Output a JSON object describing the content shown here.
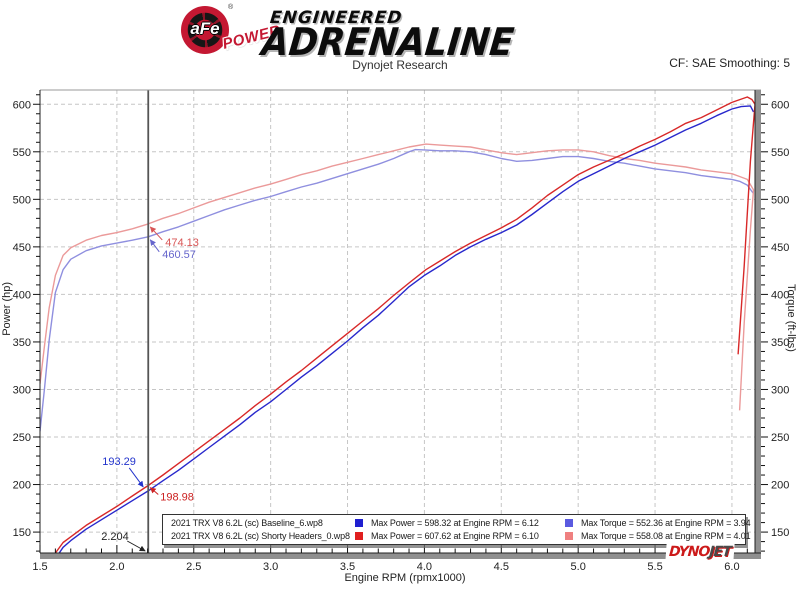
{
  "header": {
    "brand_circle": "aFe",
    "brand_sub": "POWER",
    "registered": "®",
    "line1": "ENGINEERED",
    "line2": "ADRENALINE",
    "subtitle": "Dynojet Research",
    "smoothing": "CF: SAE Smoothing: 5"
  },
  "chart_data": {
    "type": "line",
    "title": "Dynojet Research",
    "xlabel": "Engine RPM (rpmx1000)",
    "ylabel_left": "Power (hp)",
    "ylabel_right": "Torque (ft-lbs)",
    "xlim": [
      1.5,
      6.15
    ],
    "ylim": [
      128,
      615
    ],
    "xticks": [
      1.5,
      2.0,
      2.5,
      3.0,
      3.5,
      4.0,
      4.5,
      5.0,
      5.5,
      6.0
    ],
    "yticks": [
      150,
      200,
      250,
      300,
      350,
      400,
      450,
      500,
      550,
      600
    ],
    "grid": true,
    "legend_position": "bottom",
    "series": [
      {
        "name": "baseline-torque",
        "unit": "ft-lbs",
        "color": "#8f8fdf",
        "points": [
          [
            1.5,
            256
          ],
          [
            1.53,
            302
          ],
          [
            1.56,
            352
          ],
          [
            1.6,
            402
          ],
          [
            1.65,
            426
          ],
          [
            1.7,
            437
          ],
          [
            1.8,
            446
          ],
          [
            1.9,
            451
          ],
          [
            2.0,
            454
          ],
          [
            2.1,
            457
          ],
          [
            2.204,
            460.57
          ],
          [
            2.3,
            466
          ],
          [
            2.4,
            471
          ],
          [
            2.5,
            477
          ],
          [
            2.6,
            483
          ],
          [
            2.7,
            489
          ],
          [
            2.8,
            494
          ],
          [
            2.9,
            499
          ],
          [
            3.0,
            503
          ],
          [
            3.1,
            508
          ],
          [
            3.2,
            513
          ],
          [
            3.3,
            517
          ],
          [
            3.4,
            522
          ],
          [
            3.5,
            527
          ],
          [
            3.6,
            532
          ],
          [
            3.7,
            537
          ],
          [
            3.8,
            543
          ],
          [
            3.9,
            550
          ],
          [
            3.94,
            552.36
          ],
          [
            4.0,
            552
          ],
          [
            4.1,
            551
          ],
          [
            4.2,
            551
          ],
          [
            4.3,
            550
          ],
          [
            4.4,
            547
          ],
          [
            4.5,
            543
          ],
          [
            4.6,
            540
          ],
          [
            4.7,
            541
          ],
          [
            4.8,
            543
          ],
          [
            4.9,
            545
          ],
          [
            5.0,
            545
          ],
          [
            5.1,
            543
          ],
          [
            5.2,
            540
          ],
          [
            5.3,
            538
          ],
          [
            5.4,
            535
          ],
          [
            5.5,
            532
          ],
          [
            5.6,
            530
          ],
          [
            5.7,
            528
          ],
          [
            5.8,
            525
          ],
          [
            5.9,
            523
          ],
          [
            6.0,
            521
          ],
          [
            6.05,
            519
          ],
          [
            6.1,
            515
          ],
          [
            6.14,
            506
          ]
        ]
      },
      {
        "name": "shorty-torque",
        "unit": "ft-lbs",
        "color": "#eb9a9a",
        "points": [
          [
            1.5,
            306
          ],
          [
            1.53,
            347
          ],
          [
            1.56,
            386
          ],
          [
            1.6,
            420
          ],
          [
            1.65,
            441
          ],
          [
            1.7,
            449
          ],
          [
            1.8,
            457
          ],
          [
            1.9,
            462
          ],
          [
            2.0,
            465
          ],
          [
            2.1,
            469
          ],
          [
            2.204,
            474.13
          ],
          [
            2.3,
            480
          ],
          [
            2.4,
            485
          ],
          [
            2.5,
            491
          ],
          [
            2.6,
            497
          ],
          [
            2.7,
            502
          ],
          [
            2.8,
            507
          ],
          [
            2.9,
            512
          ],
          [
            3.0,
            516
          ],
          [
            3.1,
            521
          ],
          [
            3.2,
            526
          ],
          [
            3.3,
            530
          ],
          [
            3.4,
            535
          ],
          [
            3.5,
            539
          ],
          [
            3.6,
            543
          ],
          [
            3.7,
            547
          ],
          [
            3.8,
            551
          ],
          [
            3.9,
            555
          ],
          [
            4.01,
            558.08
          ],
          [
            4.1,
            557
          ],
          [
            4.2,
            556
          ],
          [
            4.3,
            555
          ],
          [
            4.4,
            552
          ],
          [
            4.5,
            549
          ],
          [
            4.6,
            547
          ],
          [
            4.7,
            549
          ],
          [
            4.8,
            551
          ],
          [
            4.9,
            552
          ],
          [
            5.0,
            552
          ],
          [
            5.1,
            550
          ],
          [
            5.2,
            546
          ],
          [
            5.3,
            543
          ],
          [
            5.4,
            541
          ],
          [
            5.5,
            538
          ],
          [
            5.6,
            536
          ],
          [
            5.7,
            534
          ],
          [
            5.8,
            531
          ],
          [
            5.9,
            529
          ],
          [
            6.0,
            527
          ],
          [
            6.05,
            524
          ],
          [
            6.1,
            521
          ],
          [
            6.14,
            510
          ],
          [
            6.12,
            468
          ],
          [
            6.08,
            370
          ],
          [
            6.05,
            278
          ]
        ]
      },
      {
        "name": "baseline-power",
        "unit": "hp",
        "color": "#2828cc",
        "points": [
          [
            1.6,
            122
          ],
          [
            1.65,
            134
          ],
          [
            1.7,
            141
          ],
          [
            1.8,
            153
          ],
          [
            1.9,
            163
          ],
          [
            2.0,
            173
          ],
          [
            2.1,
            183
          ],
          [
            2.204,
            193.29
          ],
          [
            2.3,
            204
          ],
          [
            2.4,
            215
          ],
          [
            2.5,
            227
          ],
          [
            2.6,
            239
          ],
          [
            2.7,
            251
          ],
          [
            2.8,
            263
          ],
          [
            2.9,
            276
          ],
          [
            3.0,
            287
          ],
          [
            3.1,
            300
          ],
          [
            3.2,
            313
          ],
          [
            3.3,
            325
          ],
          [
            3.4,
            338
          ],
          [
            3.5,
            351
          ],
          [
            3.6,
            365
          ],
          [
            3.7,
            378
          ],
          [
            3.8,
            393
          ],
          [
            3.9,
            408
          ],
          [
            4.0,
            420
          ],
          [
            4.1,
            430
          ],
          [
            4.2,
            441
          ],
          [
            4.3,
            450
          ],
          [
            4.4,
            458
          ],
          [
            4.5,
            465
          ],
          [
            4.6,
            473
          ],
          [
            4.7,
            484
          ],
          [
            4.8,
            496
          ],
          [
            4.9,
            508
          ],
          [
            5.0,
            519
          ],
          [
            5.1,
            527
          ],
          [
            5.2,
            535
          ],
          [
            5.3,
            543
          ],
          [
            5.4,
            550
          ],
          [
            5.5,
            557
          ],
          [
            5.6,
            565
          ],
          [
            5.7,
            573
          ],
          [
            5.8,
            580
          ],
          [
            5.9,
            588
          ],
          [
            6.0,
            595
          ],
          [
            6.06,
            597.5
          ],
          [
            6.12,
            598.32
          ],
          [
            6.14,
            592
          ]
        ]
      },
      {
        "name": "shorty-power",
        "unit": "hp",
        "color": "#d82828",
        "points": [
          [
            1.6,
            128
          ],
          [
            1.65,
            139
          ],
          [
            1.7,
            145
          ],
          [
            1.8,
            157
          ],
          [
            1.9,
            167
          ],
          [
            2.0,
            177
          ],
          [
            2.1,
            188
          ],
          [
            2.204,
            198.98
          ],
          [
            2.3,
            210
          ],
          [
            2.4,
            222
          ],
          [
            2.5,
            234
          ],
          [
            2.6,
            246
          ],
          [
            2.7,
            258
          ],
          [
            2.8,
            270
          ],
          [
            2.9,
            283
          ],
          [
            3.0,
            295
          ],
          [
            3.1,
            308
          ],
          [
            3.2,
            320
          ],
          [
            3.3,
            333
          ],
          [
            3.4,
            346
          ],
          [
            3.5,
            359
          ],
          [
            3.6,
            372
          ],
          [
            3.7,
            385
          ],
          [
            3.8,
            399
          ],
          [
            3.9,
            412
          ],
          [
            4.01,
            426
          ],
          [
            4.1,
            435
          ],
          [
            4.2,
            445
          ],
          [
            4.3,
            454
          ],
          [
            4.4,
            462
          ],
          [
            4.5,
            470
          ],
          [
            4.6,
            479
          ],
          [
            4.7,
            491
          ],
          [
            4.8,
            504
          ],
          [
            4.9,
            515
          ],
          [
            5.0,
            526
          ],
          [
            5.1,
            534
          ],
          [
            5.2,
            541
          ],
          [
            5.3,
            548
          ],
          [
            5.4,
            556
          ],
          [
            5.5,
            563
          ],
          [
            5.6,
            571
          ],
          [
            5.7,
            580
          ],
          [
            5.8,
            586
          ],
          [
            5.9,
            594
          ],
          [
            6.0,
            602
          ],
          [
            6.1,
            607.62
          ],
          [
            6.13,
            605
          ],
          [
            6.15,
            600
          ],
          [
            6.12,
            540
          ],
          [
            6.08,
            430
          ],
          [
            6.04,
            337
          ]
        ]
      }
    ],
    "cursor": {
      "rpm": 2.204,
      "rpm_label": "2.204",
      "readouts": [
        {
          "label": "474.13",
          "value": 474.13,
          "series": "shorty-torque",
          "color": "#d85555"
        },
        {
          "label": "460.57",
          "value": 460.57,
          "series": "baseline-torque",
          "color": "#6565cc"
        },
        {
          "label": "193.29",
          "value": 193.29,
          "series": "baseline-power",
          "color": "#2233cc"
        },
        {
          "label": "198.98",
          "value": 198.98,
          "series": "shorty-power",
          "color": "#cc2222"
        }
      ]
    }
  },
  "legend": {
    "rows": [
      {
        "name": "2021 TRX V8 6.2L (sc) Baseline_6.wp8",
        "power_stat": "Max Power = 598.32 at Engine RPM = 6.12",
        "torque_stat": "Max Torque = 552.36 at Engine RPM = 3.94",
        "power_color": "#1f1fd0",
        "torque_color": "#5a5ae0"
      },
      {
        "name": "2021 TRX V8 6.2L (sc) Shorty Headers_0.wp8",
        "power_stat": "Max Power = 607.62 at Engine RPM = 6.10",
        "torque_stat": "Max Torque = 558.08 at Engine RPM = 4.01",
        "power_color": "#e01f1f",
        "torque_color": "#ef8080"
      }
    ]
  },
  "dynojet": {
    "part1": "DYNO",
    "part2": "JET"
  }
}
